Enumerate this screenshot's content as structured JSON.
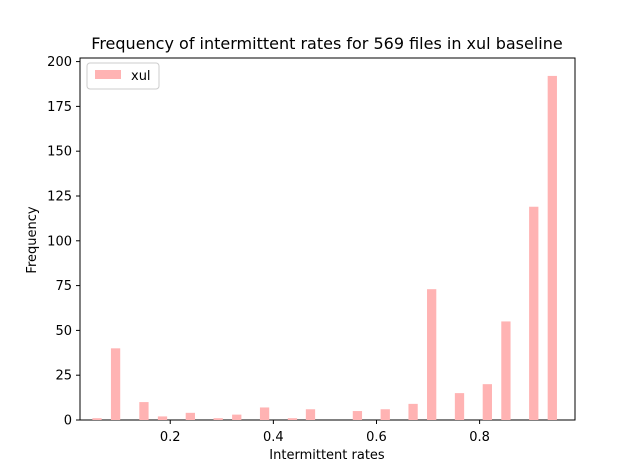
{
  "chart_data": {
    "type": "bar",
    "title": "Frequency of intermittent rates for 569 files in xul baseline",
    "xlabel": "Intermittent rates",
    "ylabel": "Frequency",
    "xlim": [
      0.025,
      0.985
    ],
    "ylim": [
      0,
      202
    ],
    "x_ticks": [
      0.2,
      0.4,
      0.6,
      0.8
    ],
    "x_tick_labels": [
      "0.2",
      "0.4",
      "0.6",
      "0.8"
    ],
    "y_ticks": [
      0,
      25,
      50,
      75,
      100,
      125,
      150,
      175,
      200
    ],
    "y_tick_labels": [
      "0",
      "25",
      "50",
      "75",
      "100",
      "125",
      "150",
      "175",
      "200"
    ],
    "bar_width": 0.018,
    "grid": false,
    "legend": {
      "position": "upper-left",
      "entries": [
        "xul"
      ]
    },
    "series": [
      {
        "name": "xul",
        "color": "#ffb3b3",
        "x": [
          0.058,
          0.094,
          0.149,
          0.185,
          0.239,
          0.293,
          0.329,
          0.383,
          0.437,
          0.472,
          0.563,
          0.617,
          0.671,
          0.707,
          0.761,
          0.815,
          0.851,
          0.905,
          0.941
        ],
        "values": [
          1,
          40,
          10,
          2,
          4,
          1,
          3,
          7,
          1,
          6,
          5,
          6,
          9,
          73,
          15,
          20,
          55,
          119,
          192
        ]
      }
    ]
  }
}
